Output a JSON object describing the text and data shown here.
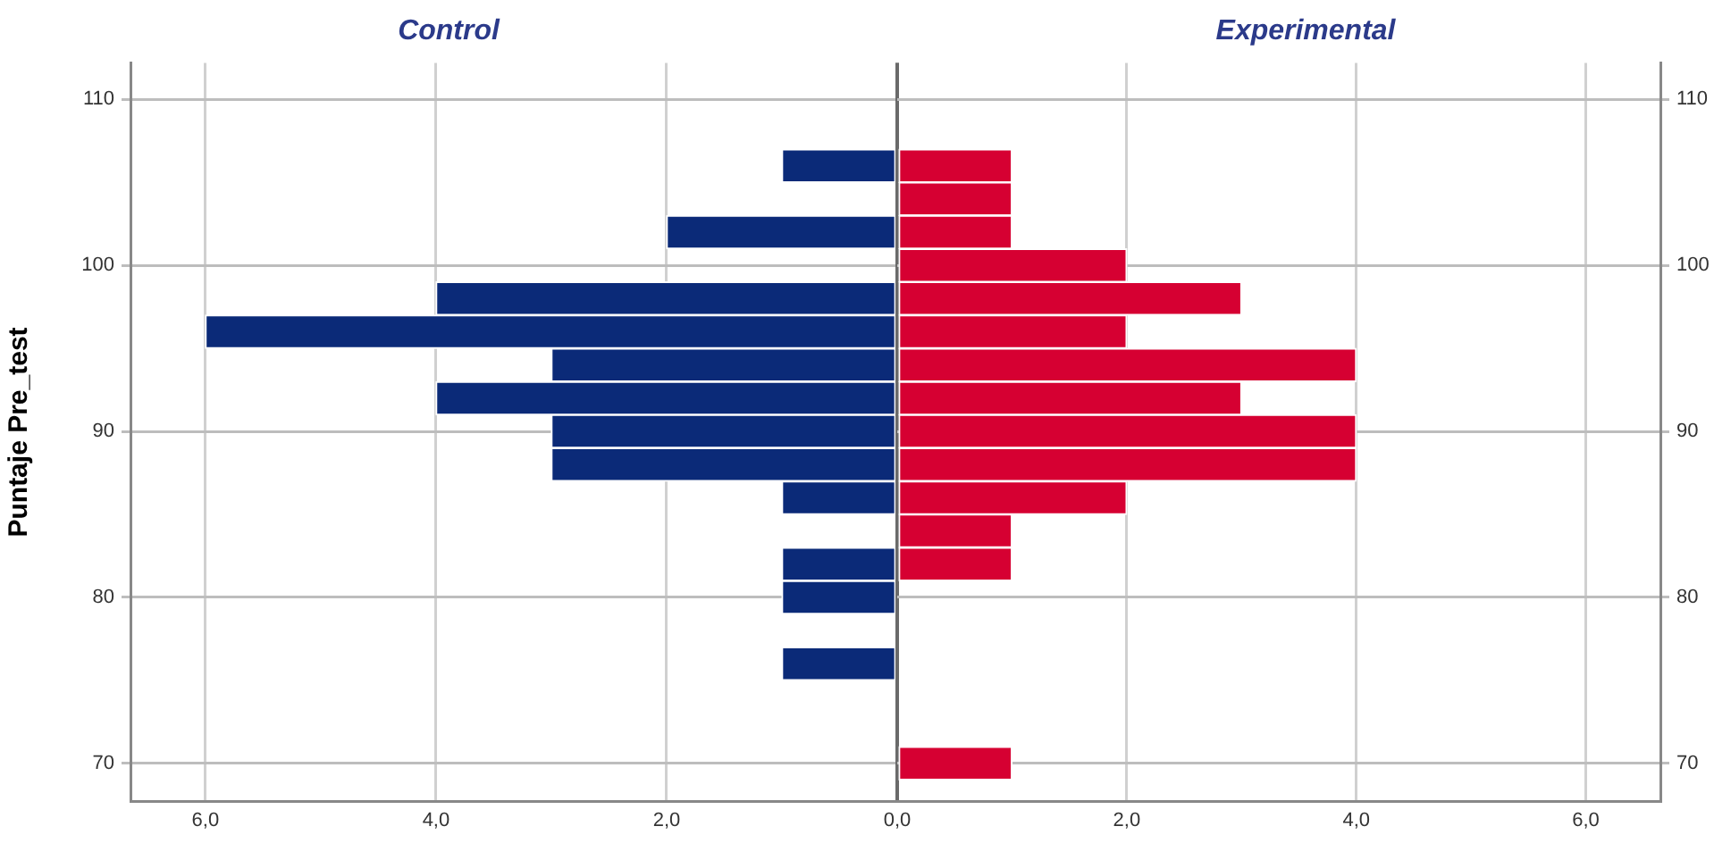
{
  "chart_data": [
    {
      "type": "histogram",
      "orientation": "horizontal",
      "title": "Control",
      "ylabel": "Puntaje Pre_test",
      "color": "#0b2a78",
      "bins": [
        69,
        71,
        73,
        75,
        77,
        79,
        81,
        83,
        85,
        87,
        89,
        91,
        93,
        95,
        97,
        99,
        101,
        103,
        105,
        107
      ],
      "values": [
        0,
        0,
        0,
        1,
        0,
        1,
        1,
        0,
        1,
        3,
        3,
        4,
        3,
        6,
        4,
        0,
        2,
        0,
        1
      ],
      "xlim": [
        6.65,
        0
      ],
      "xticks": [
        {
          "value": 6,
          "label": "6,0"
        },
        {
          "value": 4,
          "label": "4,0"
        },
        {
          "value": 2,
          "label": "2,0"
        },
        {
          "value": 0,
          "label": "0,0"
        }
      ],
      "ylim": [
        67.7,
        112.2
      ],
      "yticks": [
        70,
        80,
        90,
        100,
        110
      ],
      "grid": true
    },
    {
      "type": "histogram",
      "orientation": "horizontal",
      "title": "Experimental",
      "color": "#d60032",
      "bins": [
        69,
        71,
        73,
        75,
        77,
        79,
        81,
        83,
        85,
        87,
        89,
        91,
        93,
        95,
        97,
        99,
        101,
        103,
        105,
        107
      ],
      "values": [
        1,
        0,
        0,
        0,
        0,
        0,
        1,
        1,
        2,
        4,
        4,
        3,
        4,
        2,
        3,
        2,
        1,
        1,
        1
      ],
      "xlim": [
        0,
        6.65
      ],
      "xticks": [
        {
          "value": 0,
          "label": null
        },
        {
          "value": 2,
          "label": "2,0"
        },
        {
          "value": 4,
          "label": "4,0"
        },
        {
          "value": 6,
          "label": "6,0"
        }
      ],
      "ylim": [
        67.7,
        112.2
      ],
      "yticks": [
        70,
        80,
        90,
        100,
        110
      ],
      "grid": true
    }
  ]
}
